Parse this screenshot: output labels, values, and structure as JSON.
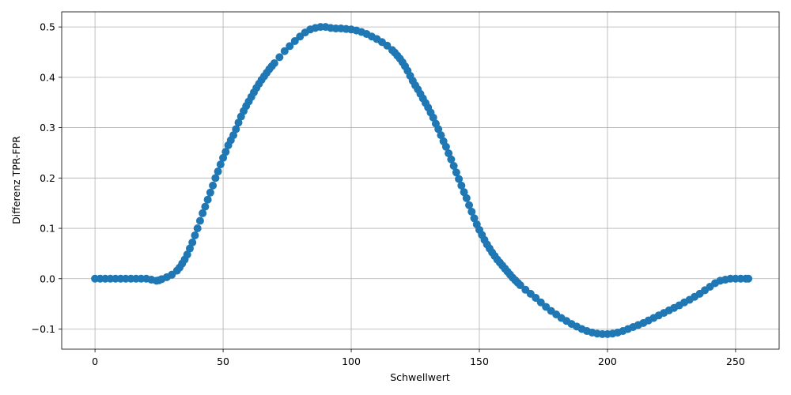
{
  "chart_data": {
    "type": "scatter",
    "title": "",
    "xlabel": "Schwellwert",
    "ylabel": "Differenz TPR-FPR",
    "xlim": [
      -13,
      267
    ],
    "ylim": [
      -0.14,
      0.53
    ],
    "xticks": [
      0,
      50,
      100,
      150,
      200,
      250
    ],
    "xtick_labels": [
      "0",
      "50",
      "100",
      "150",
      "200",
      "250"
    ],
    "yticks": [
      -0.1,
      0.0,
      0.1,
      0.2,
      0.3,
      0.4,
      0.5
    ],
    "ytick_labels": [
      "−0.1",
      "0.0",
      "0.1",
      "0.2",
      "0.3",
      "0.4",
      "0.5"
    ],
    "grid": true,
    "marker_color": "#1f77b4",
    "series": [
      {
        "x": [
          0,
          2,
          4,
          6,
          8,
          10,
          12,
          14,
          16,
          18,
          20,
          22,
          24,
          25,
          26,
          28,
          30,
          32,
          33,
          34,
          35,
          36,
          37,
          38,
          39,
          40,
          41,
          42,
          43,
          44,
          45,
          46,
          47,
          48,
          49,
          50,
          51,
          52,
          53,
          54,
          55,
          56,
          57,
          58,
          59,
          60,
          61,
          62,
          63,
          64,
          65,
          66,
          67,
          68,
          69,
          70,
          72,
          74,
          76,
          78,
          80,
          82,
          84,
          86,
          88,
          90,
          92,
          94,
          96,
          98,
          100,
          102,
          104,
          106,
          108,
          110,
          112,
          114,
          116,
          117,
          118,
          119,
          120,
          121,
          122,
          123,
          124,
          125,
          126,
          127,
          128,
          129,
          130,
          131,
          132,
          133,
          134,
          135,
          136,
          137,
          138,
          139,
          140,
          141,
          142,
          143,
          144,
          145,
          146,
          147,
          148,
          149,
          150,
          151,
          152,
          153,
          154,
          155,
          156,
          157,
          158,
          159,
          160,
          161,
          162,
          163,
          164,
          165,
          166,
          168,
          170,
          172,
          174,
          176,
          178,
          180,
          182,
          184,
          186,
          188,
          190,
          192,
          194,
          196,
          198,
          200,
          202,
          204,
          206,
          208,
          210,
          212,
          214,
          216,
          218,
          220,
          222,
          224,
          226,
          228,
          230,
          232,
          234,
          236,
          238,
          240,
          242,
          244,
          246,
          248,
          250,
          252,
          254,
          255
        ],
        "y": [
          0.0,
          0.0,
          0.0,
          0.0,
          0.0,
          0.0,
          0.0,
          0.0,
          0.0,
          0.0,
          0.0,
          -0.002,
          -0.004,
          -0.003,
          -0.001,
          0.003,
          0.008,
          0.016,
          0.022,
          0.03,
          0.038,
          0.048,
          0.06,
          0.072,
          0.086,
          0.1,
          0.115,
          0.13,
          0.143,
          0.157,
          0.171,
          0.185,
          0.2,
          0.213,
          0.227,
          0.24,
          0.252,
          0.265,
          0.275,
          0.285,
          0.297,
          0.31,
          0.322,
          0.333,
          0.343,
          0.352,
          0.361,
          0.37,
          0.379,
          0.387,
          0.395,
          0.402,
          0.409,
          0.416,
          0.422,
          0.428,
          0.44,
          0.452,
          0.462,
          0.472,
          0.481,
          0.489,
          0.495,
          0.498,
          0.5,
          0.5,
          0.498,
          0.497,
          0.497,
          0.496,
          0.495,
          0.493,
          0.49,
          0.486,
          0.481,
          0.476,
          0.47,
          0.463,
          0.454,
          0.449,
          0.443,
          0.437,
          0.43,
          0.422,
          0.413,
          0.403,
          0.393,
          0.384,
          0.376,
          0.367,
          0.358,
          0.349,
          0.34,
          0.33,
          0.32,
          0.308,
          0.297,
          0.285,
          0.273,
          0.262,
          0.249,
          0.237,
          0.224,
          0.211,
          0.198,
          0.185,
          0.172,
          0.16,
          0.146,
          0.133,
          0.12,
          0.108,
          0.097,
          0.087,
          0.077,
          0.068,
          0.06,
          0.052,
          0.045,
          0.038,
          0.032,
          0.026,
          0.02,
          0.014,
          0.008,
          0.002,
          -0.003,
          -0.008,
          -0.013,
          -0.022,
          -0.03,
          -0.038,
          -0.047,
          -0.056,
          -0.064,
          -0.071,
          -0.078,
          -0.084,
          -0.09,
          -0.095,
          -0.1,
          -0.104,
          -0.107,
          -0.109,
          -0.11,
          -0.11,
          -0.109,
          -0.107,
          -0.104,
          -0.1,
          -0.096,
          -0.092,
          -0.088,
          -0.083,
          -0.078,
          -0.073,
          -0.068,
          -0.063,
          -0.058,
          -0.053,
          -0.047,
          -0.042,
          -0.036,
          -0.03,
          -0.023,
          -0.016,
          -0.009,
          -0.004,
          -0.002,
          0.0,
          0.0,
          0.0,
          0.0,
          0.0
        ]
      }
    ]
  }
}
